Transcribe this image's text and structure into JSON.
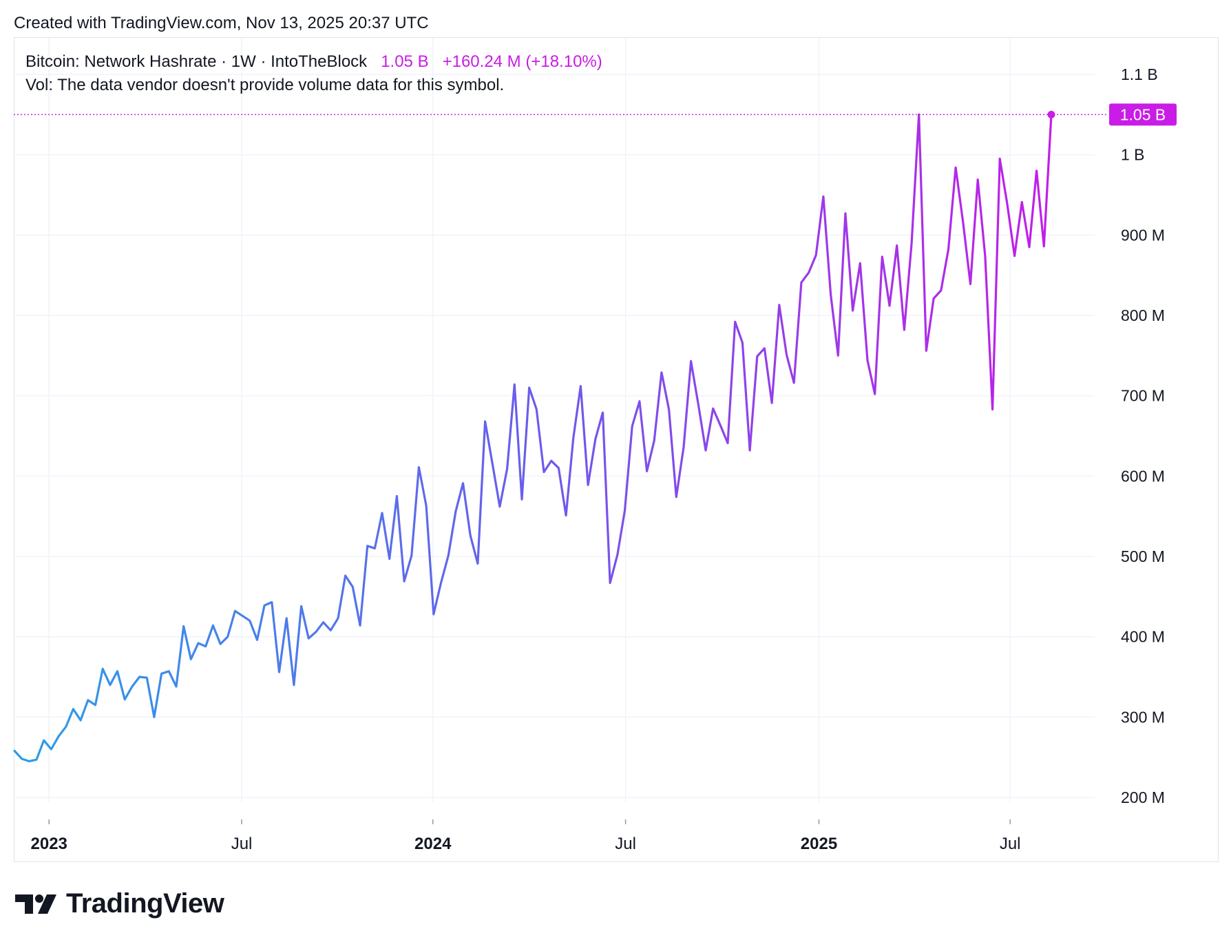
{
  "header": {
    "created_text": "Created with TradingView.com, Nov 13, 2025 20:37 UTC"
  },
  "legend": {
    "symbol": "Bitcoin: Network Hashrate · 1W · IntoTheBlock",
    "value": "1.05 B",
    "change": "+160.24 M (+18.10%)",
    "vol_text": "Vol: The data vendor doesn't provide volume data for this symbol."
  },
  "colors": {
    "line_start": "#2b9ee8",
    "line_mid": "#6b5cec",
    "line_end": "#c21ee8",
    "price_label_bg": "#c91ce6",
    "grid": "#f0f3fa",
    "axis_text": "#131722"
  },
  "brand": {
    "logo_icon": "tradingview-logo-icon",
    "name": "TradingView"
  },
  "chart_data": {
    "type": "line",
    "title": "Bitcoin: Network Hashrate · 1W · IntoTheBlock",
    "ylabel": "",
    "xlabel": "",
    "ylim": [
      165,
      1120
    ],
    "y_unit": "M (millions of TH/s)",
    "y_ticks": [
      {
        "value": 200,
        "label": "200 M"
      },
      {
        "value": 300,
        "label": "300 M"
      },
      {
        "value": 400,
        "label": "400 M"
      },
      {
        "value": 500,
        "label": "500 M"
      },
      {
        "value": 600,
        "label": "600 M"
      },
      {
        "value": 700,
        "label": "700 M"
      },
      {
        "value": 800,
        "label": "800 M"
      },
      {
        "value": 900,
        "label": "900 M"
      },
      {
        "value": 1000,
        "label": "1 B"
      },
      {
        "value": 1100,
        "label": "1.1 B"
      }
    ],
    "x_unit": "weeks since first point (first point ≈ Dec 5, 2022)",
    "xlim": [
      0,
      148
    ],
    "x_ticks": [
      {
        "value": 4.7,
        "label": "2023",
        "bold": true
      },
      {
        "value": 30.9,
        "label": "Jul",
        "bold": false
      },
      {
        "value": 56.9,
        "label": "2024",
        "bold": true
      },
      {
        "value": 83.1,
        "label": "Jul",
        "bold": false
      },
      {
        "value": 109.4,
        "label": "2025",
        "bold": true
      },
      {
        "value": 135.4,
        "label": "Jul",
        "bold": false
      }
    ],
    "last_value_label": "1.05 B",
    "last_value": 1050,
    "series": [
      {
        "name": "Bitcoin: Network Hashrate",
        "values": [
          258,
          248,
          245,
          247,
          271,
          260,
          276,
          288,
          310,
          296,
          321,
          315,
          360,
          340,
          357,
          322,
          338,
          350,
          349,
          300,
          354,
          357,
          338,
          413,
          372,
          392,
          388,
          414,
          391,
          400,
          432,
          426,
          420,
          396,
          439,
          443,
          356,
          423,
          340,
          438,
          398,
          406,
          418,
          408,
          423,
          476,
          462,
          414,
          513,
          510,
          554,
          497,
          575,
          469,
          501,
          611,
          563,
          428,
          467,
          501,
          556,
          591,
          526,
          491,
          668,
          615,
          562,
          609,
          714,
          571,
          710,
          683,
          605,
          619,
          610,
          551,
          647,
          712,
          589,
          646,
          679,
          467,
          502,
          557,
          662,
          693,
          606,
          644,
          729,
          683,
          574,
          636,
          743,
          689,
          632,
          684,
          663,
          641,
          792,
          766,
          632,
          749,
          759,
          691,
          813,
          751,
          716,
          841,
          853,
          875,
          948,
          826,
          750,
          927,
          806,
          865,
          744,
          702,
          873,
          812,
          887,
          782,
          890,
          1050,
          756,
          821,
          831,
          882,
          984,
          916,
          839,
          969,
          874,
          683,
          995,
          939,
          874,
          941,
          885,
          980,
          886,
          1050
        ]
      }
    ]
  }
}
